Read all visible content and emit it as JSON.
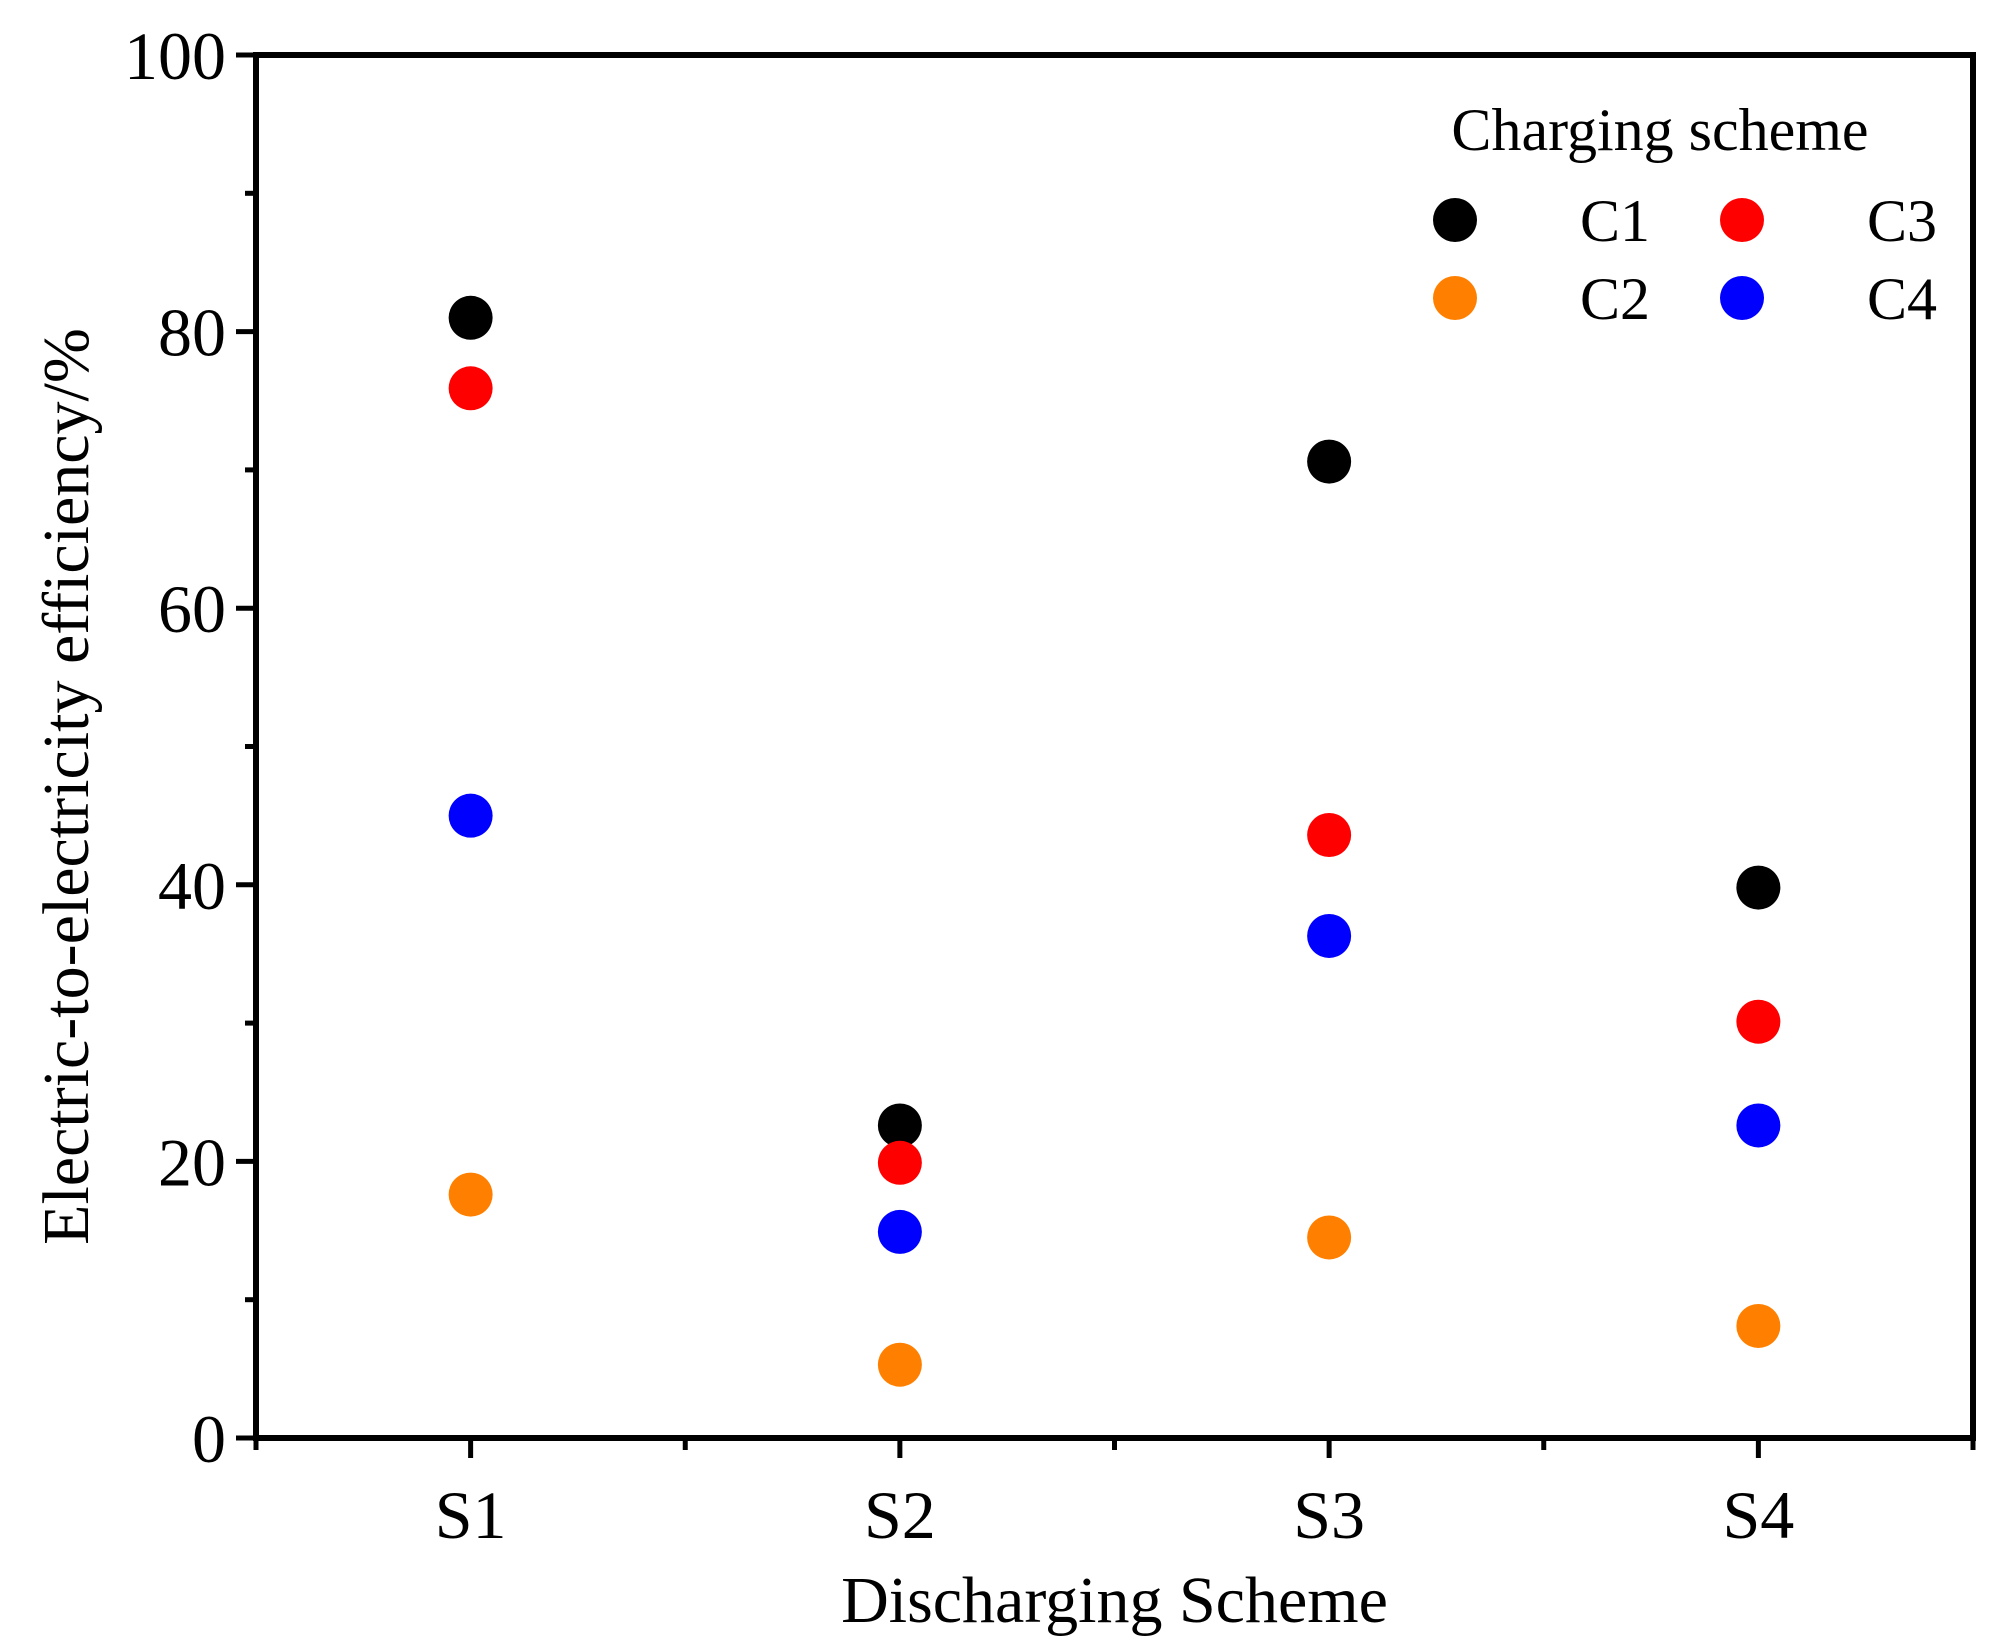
{
  "chart_data": {
    "type": "scatter",
    "title": "",
    "xlabel": "Discharging Scheme",
    "ylabel": "Electric-to-electricity efficiency/%",
    "categories": [
      "S1",
      "S2",
      "S3",
      "S4"
    ],
    "ylim": [
      0,
      100
    ],
    "y_ticks": [
      0,
      20,
      40,
      60,
      80,
      100
    ],
    "y_tick_labels": [
      "0",
      "20",
      "40",
      "60",
      "80",
      "100"
    ],
    "grid": false,
    "legend": {
      "title": "Charging scheme",
      "position": "top-right",
      "columns": 2
    },
    "series": [
      {
        "name": "C1",
        "color": "#000000",
        "values": [
          81.0,
          22.6,
          70.6,
          39.8
        ]
      },
      {
        "name": "C2",
        "color": "#ff8000",
        "values": [
          17.6,
          5.3,
          14.5,
          8.1
        ]
      },
      {
        "name": "C3",
        "color": "#ff0000",
        "values": [
          75.9,
          19.9,
          43.6,
          30.1
        ]
      },
      {
        "name": "C4",
        "color": "#0000ff",
        "values": [
          45.0,
          14.9,
          36.3,
          22.6
        ]
      }
    ]
  }
}
